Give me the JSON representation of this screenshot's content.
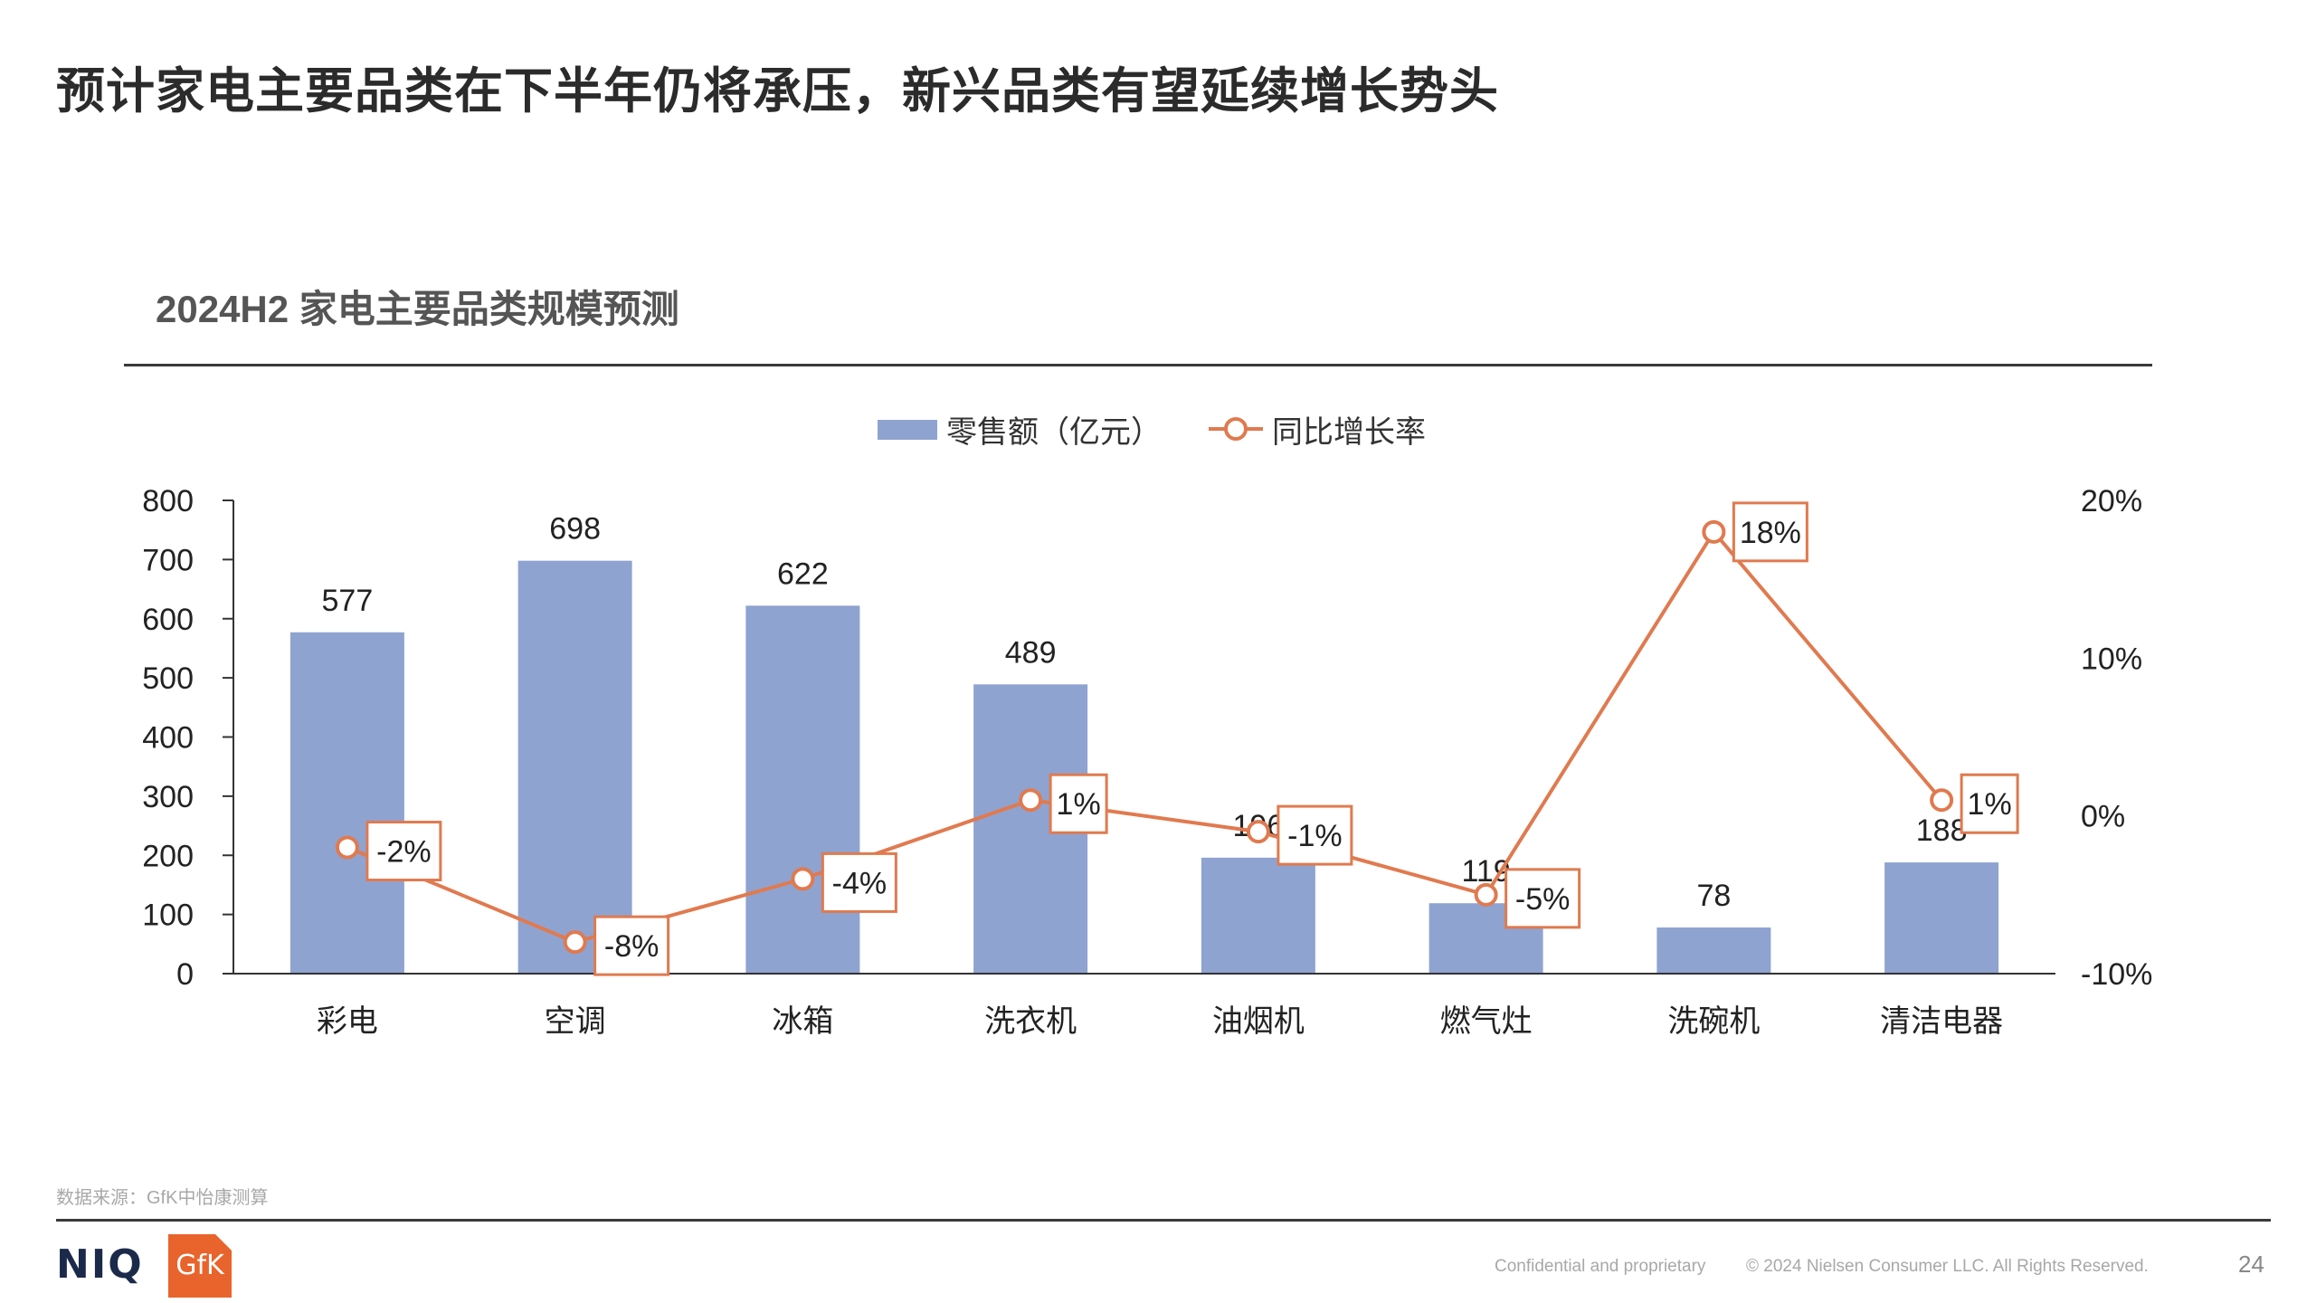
{
  "slide": {
    "title": "预计家电主要品类在下半年仍将承压，新兴品类有望延续增长势头",
    "chart_title": "2024H2 家电主要品类规模预测",
    "source": "数据来源：GfK中怡康测算",
    "footer_confidential": "Confidential and proprietary",
    "footer_copyright": "© 2024 Nielsen Consumer LLC. All Rights Reserved.",
    "page_number": "24",
    "logo_niq": "NIQ",
    "logo_gfk": "GfK"
  },
  "colors": {
    "bar": "#8fa3d1",
    "line": "#e07a4f",
    "axis": "#333333"
  },
  "chart_data": {
    "type": "bar",
    "title": "2024H2 家电主要品类规模预测",
    "categories": [
      "彩电",
      "空调",
      "冰箱",
      "洗衣机",
      "油烟机",
      "燃气灶",
      "洗碗机",
      "清洁电器"
    ],
    "series": [
      {
        "name": "零售额（亿元）",
        "type": "bar",
        "axis": "left",
        "values": [
          577,
          698,
          622,
          489,
          196,
          119,
          78,
          188
        ],
        "labels": [
          "577",
          "698",
          "622",
          "489",
          "196",
          "119",
          "78",
          "188"
        ]
      },
      {
        "name": "同比增长率",
        "type": "line",
        "axis": "right",
        "values": [
          -2,
          -8,
          -4,
          1,
          -1,
          -5,
          18,
          1
        ],
        "labels": [
          "-2%",
          "-8%",
          "-4%",
          "1%",
          "-1%",
          "-5%",
          "18%",
          "1%"
        ]
      }
    ],
    "ylim_left": [
      0,
      800
    ],
    "yticks_left": [
      0,
      100,
      200,
      300,
      400,
      500,
      600,
      700,
      800
    ],
    "ylim_right": [
      -10,
      20
    ],
    "yticks_right": [
      -10,
      0,
      10,
      20
    ],
    "yticks_right_labels": [
      "-10%",
      "0%",
      "10%",
      "20%"
    ],
    "legend_position": "top-center"
  }
}
